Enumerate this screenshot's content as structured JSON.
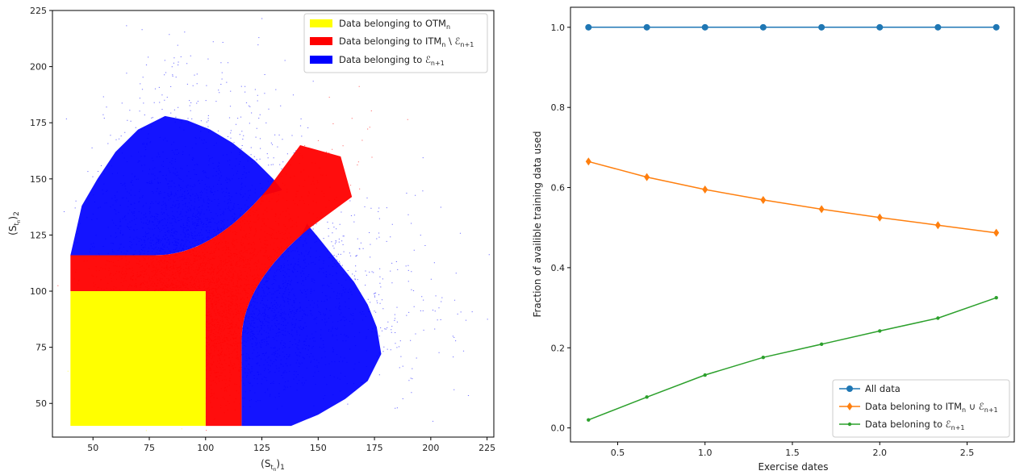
{
  "chart_data": [
    {
      "type": "scatter",
      "xlabel_main": "(S",
      "xlabel_sub": "t",
      "xlabel_subsub": "n",
      "xlabel_end": ")",
      "xlabel_index": "1",
      "ylabel_main": "(S",
      "ylabel_sub": "t",
      "ylabel_subsub": "n",
      "ylabel_end": ")",
      "ylabel_index": "2",
      "xlim": [
        32,
        228
      ],
      "ylim": [
        35,
        225
      ],
      "xticks": [
        50,
        75,
        100,
        125,
        150,
        175,
        200,
        225
      ],
      "yticks": [
        50,
        75,
        100,
        125,
        150,
        175,
        200,
        225
      ],
      "strike": 100,
      "otm_upper": 100,
      "boundary_start": 116,
      "legend_position": "upper right",
      "legend": [
        {
          "label": "Data belonging to OTM",
          "sub": "n",
          "color": "#ffff00"
        },
        {
          "label": "Data belonging to ITM",
          "sub": "n",
          "tail": " \\ ℰ",
          "tail_sub": "n+1",
          "color": "#ff0000"
        },
        {
          "label": "Data belonging to ℰ",
          "sub": "n+1",
          "color": "#0000ff"
        }
      ]
    },
    {
      "type": "line",
      "xlabel": "Exercise dates",
      "ylabel": "Fraction of availible training data used",
      "xlim": [
        0.23,
        2.77
      ],
      "ylim": [
        -0.035,
        1.05
      ],
      "xticks": [
        0.5,
        1.0,
        1.5,
        2.0,
        2.5
      ],
      "xtick_labels": [
        "0.5",
        "1.0",
        "1.5",
        "2.0",
        "2.5"
      ],
      "yticks": [
        0.0,
        0.2,
        0.4,
        0.6,
        0.8,
        1.0
      ],
      "ytick_labels": [
        "0.0",
        "0.2",
        "0.4",
        "0.6",
        "0.8",
        "1.0"
      ],
      "x": [
        0.333,
        0.667,
        1.0,
        1.333,
        1.667,
        2.0,
        2.333,
        2.667
      ],
      "legend_position": "lower right",
      "series": [
        {
          "name": "All data",
          "color": "#1f77b4",
          "marker": "circle",
          "values": [
            1.0,
            1.0,
            1.0,
            1.0,
            1.0,
            1.0,
            1.0,
            1.0
          ]
        },
        {
          "name": "Data beloning to ITM",
          "sub": "n",
          "tail": " ∪ ℰ",
          "tail_sub": "n+1",
          "color": "#ff7f0e",
          "marker": "diamond",
          "values": [
            0.665,
            0.626,
            0.595,
            0.569,
            0.546,
            0.525,
            0.506,
            0.487
          ]
        },
        {
          "name": "Data beloning to ℰ",
          "sub": "n+1",
          "color": "#2ca02c",
          "marker": "point",
          "values": [
            0.02,
            0.077,
            0.132,
            0.176,
            0.209,
            0.242,
            0.274,
            0.325
          ]
        }
      ]
    }
  ]
}
